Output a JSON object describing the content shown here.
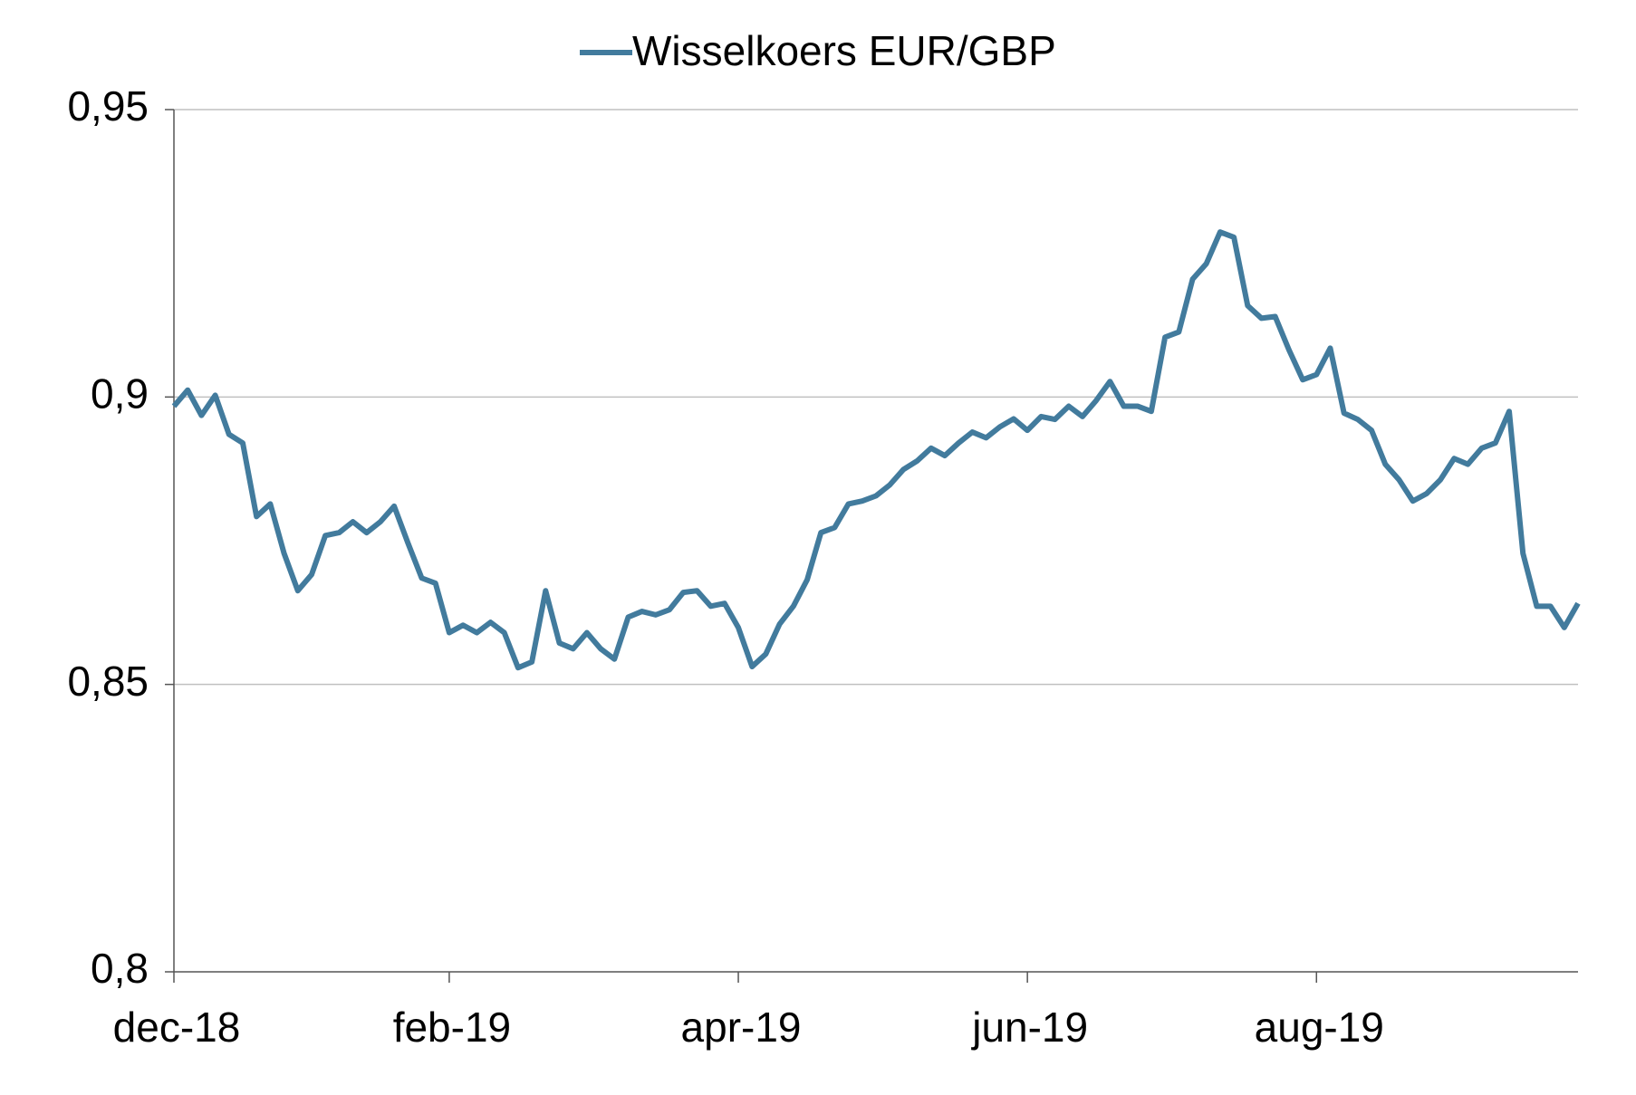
{
  "chart_data": {
    "type": "line",
    "series": [
      {
        "name": "Wisselkoers EUR/GBP",
        "color": "#427b9d",
        "values": [
          0.8984,
          0.9012,
          0.8968,
          0.9003,
          0.8935,
          0.892,
          0.8792,
          0.8814,
          0.8728,
          0.8663,
          0.8691,
          0.8759,
          0.8764,
          0.8783,
          0.8764,
          0.8783,
          0.881,
          0.8746,
          0.8685,
          0.8676,
          0.859,
          0.8603,
          0.859,
          0.8608,
          0.859,
          0.8529,
          0.8539,
          0.8663,
          0.8572,
          0.8562,
          0.859,
          0.8562,
          0.8544,
          0.8617,
          0.8627,
          0.8621,
          0.863,
          0.866,
          0.8663,
          0.8636,
          0.8641,
          0.8599,
          0.8531,
          0.8553,
          0.8605,
          0.8636,
          0.8682,
          0.8764,
          0.8773,
          0.8814,
          0.8819,
          0.8828,
          0.8847,
          0.8874,
          0.8889,
          0.8911,
          0.8898,
          0.892,
          0.8939,
          0.8929,
          0.8948,
          0.8962,
          0.8942,
          0.8966,
          0.8961,
          0.8984,
          0.8966,
          0.8994,
          0.9027,
          0.8984,
          0.8984,
          0.8975,
          0.9104,
          0.9113,
          0.9205,
          0.9232,
          0.9287,
          0.9278,
          0.9159,
          0.9137,
          0.914,
          0.9082,
          0.903,
          0.9039,
          0.9085,
          0.8972,
          0.8961,
          0.8942,
          0.8883,
          0.8856,
          0.8819,
          0.8832,
          0.8856,
          0.8893,
          0.8883,
          0.8911,
          0.892,
          0.8975,
          0.8728,
          0.8636,
          0.8636,
          0.8599,
          0.8641
        ]
      }
    ],
    "xlim": [
      0,
      102
    ],
    "xticks": [
      {
        "value": 0,
        "label": "dec-18"
      },
      {
        "value": 20,
        "label": "feb-19"
      },
      {
        "value": 41,
        "label": "apr-19"
      },
      {
        "value": 62,
        "label": "jun-19"
      },
      {
        "value": 83,
        "label": "aug-19"
      }
    ],
    "ylim": [
      0.8,
      0.95
    ],
    "yticks": [
      {
        "value": 0.8,
        "label": "0,8"
      },
      {
        "value": 0.85,
        "label": "0,85"
      },
      {
        "value": 0.9,
        "label": "0,9"
      },
      {
        "value": 0.95,
        "label": "0,95"
      }
    ],
    "grid": true,
    "legend": "top"
  }
}
